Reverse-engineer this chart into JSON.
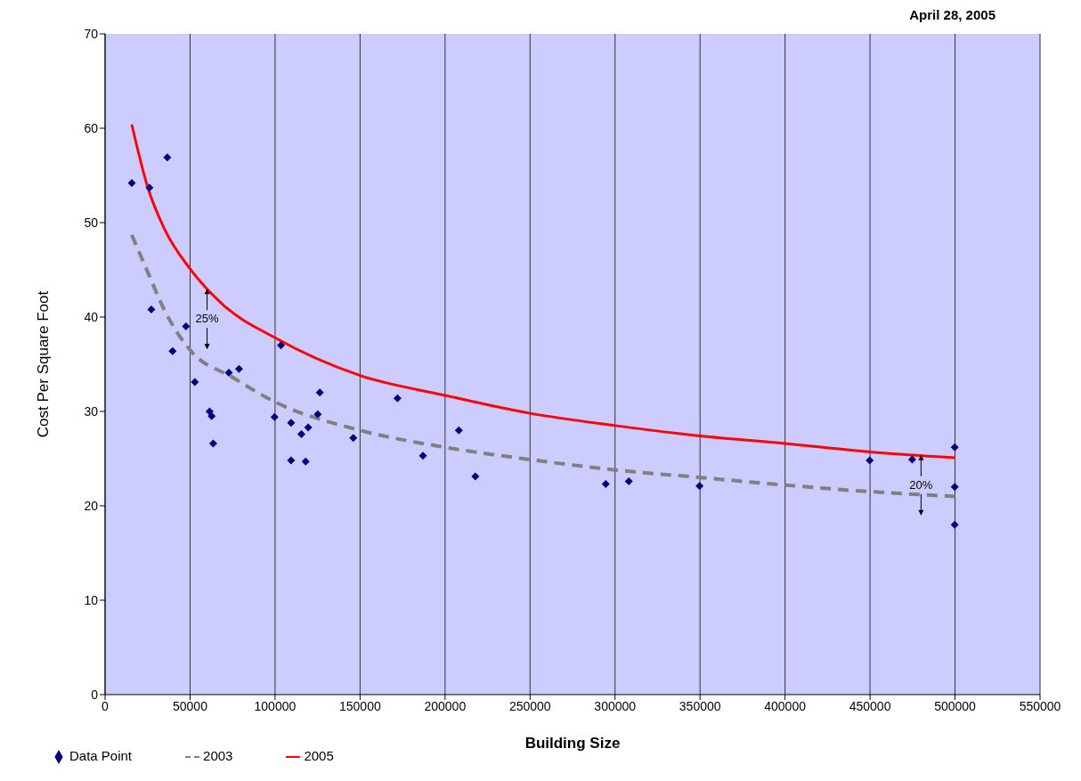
{
  "chart_data": {
    "type": "scatter",
    "title": "April 28, 2005",
    "xlabel": "Building Size",
    "ylabel": "Cost Per Square Foot",
    "xlim": [
      0,
      550000
    ],
    "xticks": [
      0,
      50000,
      100000,
      150000,
      200000,
      250000,
      300000,
      350000,
      400000,
      450000,
      500000,
      550000
    ],
    "ylim": [
      0,
      70
    ],
    "yticks": [
      0,
      10,
      20,
      30,
      40,
      50,
      60,
      70
    ],
    "grid": "x",
    "legend": "bottom",
    "annotations": [
      {
        "text": "25%",
        "x": 60000,
        "y": 43.0
      },
      {
        "text": "20%",
        "x": 480000,
        "y": 25.4
      }
    ],
    "series": [
      {
        "name": "Data Point",
        "color": "#000080",
        "marker": "diamond",
        "x": [
          15700,
          26100,
          36600,
          27200,
          47600,
          39700,
          52800,
          61500,
          62700,
          63600,
          72800,
          78800,
          103500,
          99700,
          109400,
          109400,
          118000,
          115500,
          119500,
          126300,
          125100,
          146000,
          172000,
          187000,
          208100,
          217800,
          294500,
          308100,
          349700,
          449800,
          474800,
          499800,
          499800,
          499800
        ],
        "values": [
          54.2,
          53.7,
          56.9,
          40.8,
          39.0,
          36.4,
          33.1,
          30.0,
          29.5,
          26.6,
          34.1,
          34.5,
          37.0,
          29.4,
          28.8,
          24.8,
          24.7,
          27.6,
          28.3,
          32.0,
          29.7,
          27.2,
          31.4,
          25.3,
          28.0,
          23.1,
          22.3,
          22.6,
          22.1,
          24.8,
          24.9,
          26.2,
          22.0,
          18.0
        ]
      },
      {
        "name": "2003",
        "type": "line",
        "color": "#808080",
        "line_style": "dashed",
        "x": [
          15700,
          25000,
          35000,
          50000,
          75000,
          100000,
          150000,
          200000,
          250000,
          300000,
          350000,
          400000,
          450000,
          500000
        ],
        "values": [
          48.7,
          44.8,
          40.7,
          36.5,
          33.6,
          31.0,
          28.0,
          26.2,
          24.9,
          23.8,
          23.0,
          22.2,
          21.5,
          21.0
        ]
      },
      {
        "name": "2005",
        "type": "line",
        "color": "#ff0000",
        "line_style": "solid",
        "x": [
          15700,
          25000,
          35000,
          50000,
          70000,
          100000,
          150000,
          200000,
          250000,
          300000,
          350000,
          400000,
          450000,
          500000
        ],
        "values": [
          60.4,
          53.8,
          49.3,
          45.1,
          41.2,
          37.8,
          33.8,
          31.7,
          29.8,
          28.5,
          27.4,
          26.6,
          25.7,
          25.1
        ]
      }
    ]
  }
}
